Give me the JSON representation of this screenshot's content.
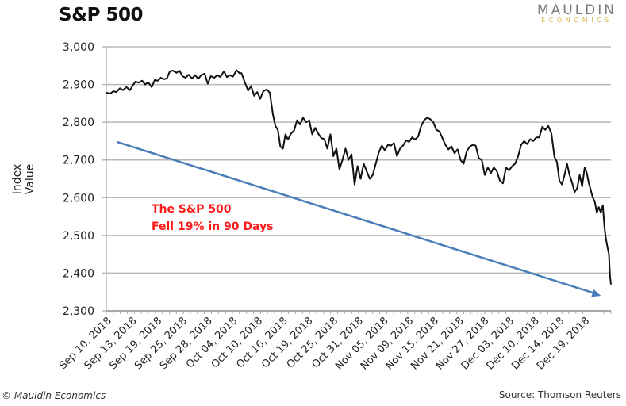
{
  "header": {
    "title": "S&P 500",
    "logo_top": "MAULDIN",
    "logo_bottom": "ECONOMICS"
  },
  "footer": {
    "copyright": "© Mauldin Economics",
    "source": "Source: Thomson Reuters"
  },
  "colors": {
    "line": "#111111",
    "trend_arrow": "#4a7ebb",
    "annotation": "#ff1a1a",
    "grid": "#b8b8b8",
    "logo_gray": "#7a7a7a",
    "logo_gold": "#d8b54a"
  },
  "chart_data": {
    "type": "line",
    "title": "S&P 500",
    "xlabel": "",
    "ylabel": "Index Value",
    "ylim": [
      2300,
      3000
    ],
    "yticks": [
      2300,
      2400,
      2500,
      2600,
      2700,
      2800,
      2900,
      3000
    ],
    "ytick_labels": [
      "2,300",
      "2,400",
      "2,500",
      "2,600",
      "2,700",
      "2,800",
      "2,900",
      "3,000"
    ],
    "grid": true,
    "xtick_labels": [
      "Sep 10, 2018",
      "Sep 13, 2018",
      "Sep 19, 2018",
      "Sep 25, 2018",
      "Sep 28, 2018",
      "Oct 04, 2018",
      "Oct 10, 2018",
      "Oct 16, 2018",
      "Oct 19, 2018",
      "Oct 25, 2018",
      "Oct 31, 2018",
      "Nov 05, 2018",
      "Nov 09, 2018",
      "Nov 15, 2018",
      "Nov 21, 2018",
      "Nov 27, 2018",
      "Dec 03, 2018",
      "Dec 10, 2018",
      "Dec 14, 2018",
      "Dec 19, 2018"
    ],
    "annotation": {
      "line1": "The S&P 500",
      "line2": "Fell 19% in 90 Days"
    },
    "trend_arrow": {
      "start": {
        "t": 0.021,
        "value": 2748
      },
      "end": {
        "t": 0.98,
        "value": 2340
      }
    },
    "series": [
      {
        "name": "S&P 500",
        "points": [
          [
            0.0,
            2878
          ],
          [
            0.008,
            2876
          ],
          [
            0.014,
            2882
          ],
          [
            0.02,
            2880
          ],
          [
            0.027,
            2890
          ],
          [
            0.033,
            2885
          ],
          [
            0.04,
            2893
          ],
          [
            0.047,
            2885
          ],
          [
            0.052,
            2897
          ],
          [
            0.058,
            2908
          ],
          [
            0.064,
            2905
          ],
          [
            0.071,
            2910
          ],
          [
            0.077,
            2900
          ],
          [
            0.083,
            2906
          ],
          [
            0.09,
            2893
          ],
          [
            0.096,
            2912
          ],
          [
            0.102,
            2910
          ],
          [
            0.108,
            2918
          ],
          [
            0.114,
            2914
          ],
          [
            0.12,
            2916
          ],
          [
            0.126,
            2935
          ],
          [
            0.132,
            2937
          ],
          [
            0.139,
            2931
          ],
          [
            0.145,
            2937
          ],
          [
            0.151,
            2922
          ],
          [
            0.157,
            2918
          ],
          [
            0.163,
            2926
          ],
          [
            0.17,
            2916
          ],
          [
            0.176,
            2925
          ],
          [
            0.182,
            2915
          ],
          [
            0.188,
            2925
          ],
          [
            0.195,
            2929
          ],
          [
            0.201,
            2902
          ],
          [
            0.207,
            2922
          ],
          [
            0.214,
            2918
          ],
          [
            0.22,
            2925
          ],
          [
            0.226,
            2920
          ],
          [
            0.233,
            2935
          ],
          [
            0.239,
            2920
          ],
          [
            0.245,
            2925
          ],
          [
            0.251,
            2921
          ],
          [
            0.258,
            2938
          ],
          [
            0.264,
            2930
          ],
          [
            0.268,
            2930
          ],
          [
            0.275,
            2904
          ],
          [
            0.281,
            2884
          ],
          [
            0.287,
            2896
          ],
          [
            0.293,
            2870
          ],
          [
            0.299,
            2880
          ],
          [
            0.305,
            2862
          ],
          [
            0.311,
            2882
          ],
          [
            0.318,
            2887
          ],
          [
            0.324,
            2878
          ],
          [
            0.33,
            2822
          ],
          [
            0.335,
            2790
          ],
          [
            0.34,
            2780
          ],
          [
            0.345,
            2735
          ],
          [
            0.35,
            2730
          ],
          [
            0.355,
            2768
          ],
          [
            0.36,
            2754
          ],
          [
            0.366,
            2770
          ],
          [
            0.372,
            2778
          ],
          [
            0.378,
            2805
          ],
          [
            0.384,
            2794
          ],
          [
            0.39,
            2812
          ],
          [
            0.396,
            2800
          ],
          [
            0.402,
            2805
          ],
          [
            0.408,
            2768
          ],
          [
            0.414,
            2785
          ],
          [
            0.42,
            2770
          ],
          [
            0.426,
            2758
          ],
          [
            0.432,
            2755
          ],
          [
            0.438,
            2730
          ],
          [
            0.444,
            2768
          ],
          [
            0.45,
            2710
          ],
          [
            0.456,
            2730
          ],
          [
            0.462,
            2675
          ],
          [
            0.468,
            2700
          ],
          [
            0.474,
            2730
          ],
          [
            0.48,
            2700
          ],
          [
            0.486,
            2715
          ],
          [
            0.492,
            2635
          ],
          [
            0.498,
            2684
          ],
          [
            0.504,
            2650
          ],
          [
            0.51,
            2690
          ],
          [
            0.516,
            2670
          ],
          [
            0.522,
            2650
          ],
          [
            0.528,
            2660
          ],
          [
            0.534,
            2690
          ],
          [
            0.54,
            2720
          ],
          [
            0.546,
            2738
          ],
          [
            0.552,
            2725
          ],
          [
            0.558,
            2740
          ],
          [
            0.564,
            2738
          ],
          [
            0.57,
            2745
          ],
          [
            0.576,
            2710
          ],
          [
            0.582,
            2730
          ],
          [
            0.588,
            2738
          ],
          [
            0.594,
            2752
          ],
          [
            0.6,
            2748
          ],
          [
            0.606,
            2760
          ],
          [
            0.612,
            2754
          ],
          [
            0.618,
            2762
          ],
          [
            0.624,
            2790
          ],
          [
            0.63,
            2806
          ],
          [
            0.636,
            2812
          ],
          [
            0.642,
            2808
          ],
          [
            0.648,
            2800
          ],
          [
            0.654,
            2780
          ],
          [
            0.66,
            2776
          ],
          [
            0.666,
            2758
          ],
          [
            0.672,
            2740
          ],
          [
            0.678,
            2728
          ],
          [
            0.684,
            2736
          ],
          [
            0.69,
            2718
          ],
          [
            0.696,
            2728
          ],
          [
            0.702,
            2700
          ],
          [
            0.708,
            2690
          ],
          [
            0.714,
            2722
          ],
          [
            0.72,
            2735
          ],
          [
            0.726,
            2740
          ],
          [
            0.732,
            2738
          ],
          [
            0.738,
            2705
          ],
          [
            0.744,
            2700
          ],
          [
            0.75,
            2660
          ],
          [
            0.756,
            2680
          ],
          [
            0.762,
            2665
          ],
          [
            0.768,
            2680
          ],
          [
            0.774,
            2670
          ],
          [
            0.78,
            2645
          ],
          [
            0.786,
            2638
          ],
          [
            0.792,
            2680
          ],
          [
            0.798,
            2672
          ],
          [
            0.804,
            2683
          ],
          [
            0.81,
            2690
          ],
          [
            0.816,
            2710
          ],
          [
            0.822,
            2740
          ],
          [
            0.828,
            2750
          ],
          [
            0.834,
            2742
          ],
          [
            0.84,
            2755
          ],
          [
            0.846,
            2750
          ],
          [
            0.852,
            2760
          ],
          [
            0.858,
            2760
          ],
          [
            0.864,
            2788
          ],
          [
            0.87,
            2780
          ],
          [
            0.876,
            2790
          ],
          [
            0.882,
            2770
          ],
          [
            0.888,
            2708
          ],
          [
            0.893,
            2695
          ],
          [
            0.898,
            2645
          ],
          [
            0.903,
            2635
          ],
          [
            0.908,
            2660
          ],
          [
            0.913,
            2690
          ],
          [
            0.918,
            2660
          ],
          [
            0.923,
            2640
          ],
          [
            0.928,
            2615
          ],
          [
            0.933,
            2625
          ],
          [
            0.938,
            2660
          ],
          [
            0.943,
            2630
          ],
          [
            0.948,
            2680
          ],
          [
            0.952,
            2666
          ],
          [
            0.956,
            2640
          ],
          [
            0.96,
            2620
          ],
          [
            0.964,
            2600
          ],
          [
            0.968,
            2590
          ],
          [
            0.972,
            2560
          ],
          [
            0.976,
            2575
          ],
          [
            0.98,
            2560
          ],
          [
            0.984,
            2580
          ],
          [
            0.987,
            2525
          ],
          [
            0.99,
            2492
          ],
          [
            0.993,
            2470
          ],
          [
            0.996,
            2450
          ],
          [
            0.998,
            2395
          ],
          [
            1.0,
            2370
          ]
        ]
      }
    ]
  }
}
